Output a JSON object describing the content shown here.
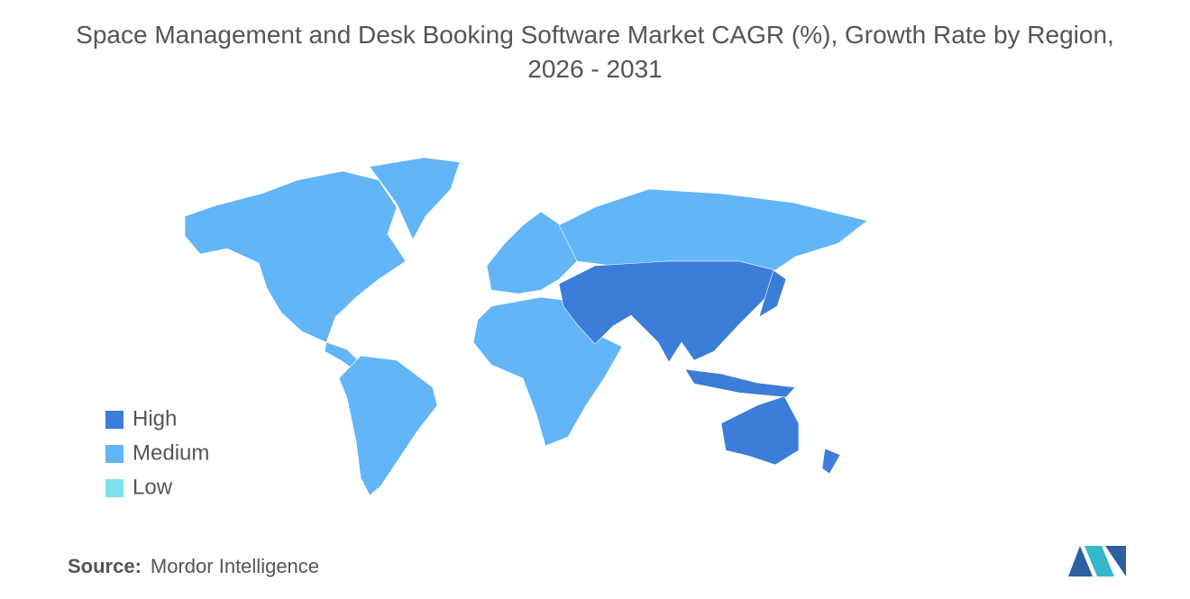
{
  "title": [
    "Space Management and Desk Booking Software Market CAGR (%), Growth Rate by Region,",
    "2026 - 2031"
  ],
  "legend": [
    {
      "name": "High",
      "color": "#3b7dd8"
    },
    {
      "name": "Medium",
      "color": "#62b5f6"
    },
    {
      "name": "Low",
      "color": "#7fe0ec"
    }
  ],
  "source": {
    "label": "Source:",
    "text": "Mordor Intelligence"
  }
}
